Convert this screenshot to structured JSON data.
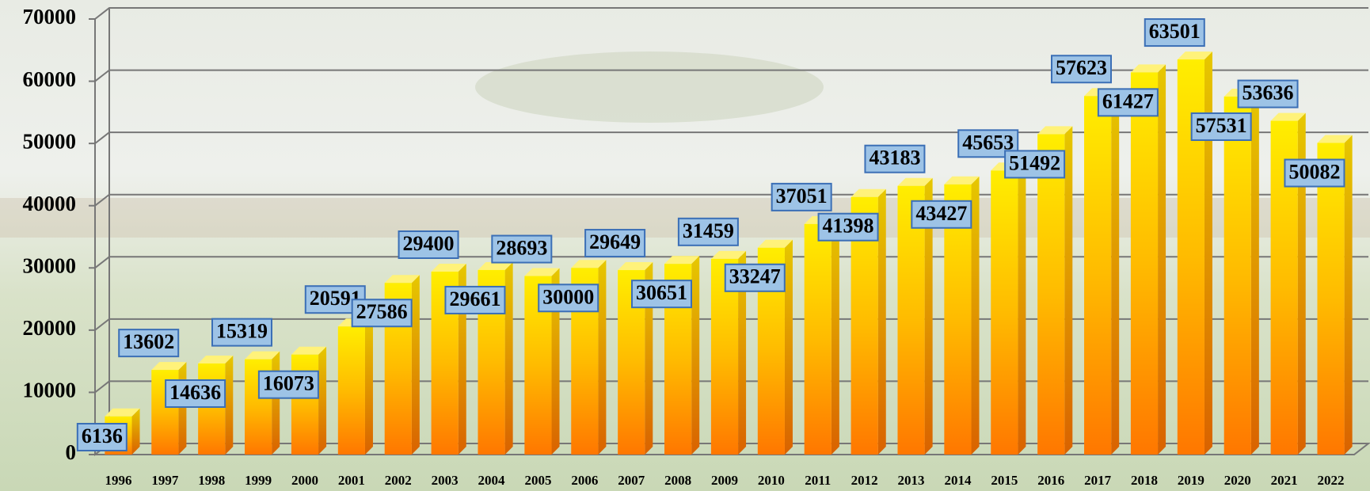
{
  "chart_data": {
    "type": "bar",
    "categories": [
      "1996",
      "1997",
      "1998",
      "1999",
      "2000",
      "2001",
      "2002",
      "2003",
      "2004",
      "2005",
      "2006",
      "2007",
      "2008",
      "2009",
      "2010",
      "2011",
      "2012",
      "2013",
      "2014",
      "2015",
      "2016",
      "2017",
      "2018",
      "2019",
      "2020",
      "2021",
      "2022"
    ],
    "values": [
      6136,
      13602,
      14636,
      15319,
      16073,
      20591,
      27586,
      29400,
      29661,
      28693,
      30000,
      29649,
      30651,
      31459,
      33247,
      37051,
      41398,
      43183,
      43427,
      45653,
      51492,
      57623,
      61427,
      63501,
      57531,
      53636,
      50082
    ],
    "color": "#ff9900",
    "ylim": [
      0,
      70000
    ],
    "yticks": [
      0,
      10000,
      20000,
      30000,
      40000,
      50000,
      60000,
      70000
    ],
    "grid": true
  }
}
